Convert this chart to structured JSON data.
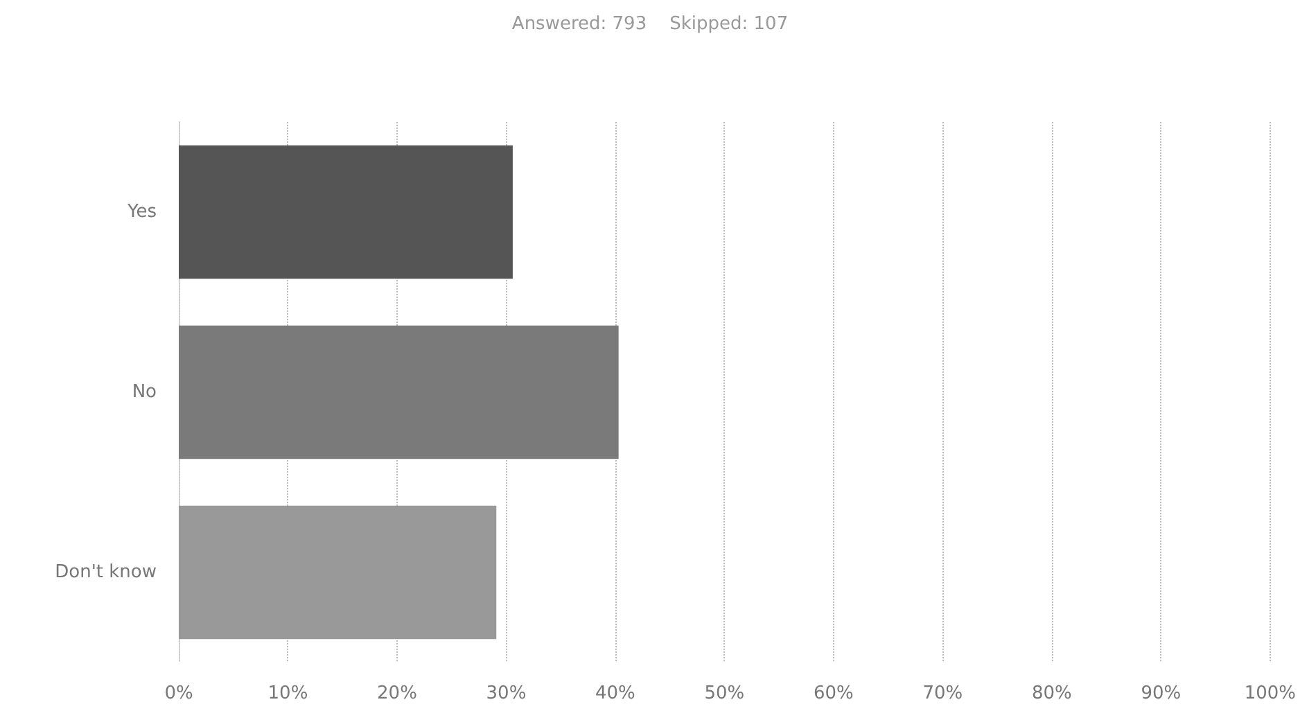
{
  "chart_data": {
    "type": "bar",
    "orientation": "horizontal",
    "title": "Answered: 793    Skipped: 107",
    "categories": [
      "Yes",
      "No",
      "Don't know"
    ],
    "values": [
      30.6,
      40.3,
      29.1
    ],
    "colors": [
      "#555555",
      "#7a7a7a",
      "#999999"
    ],
    "xlim": [
      0,
      100
    ],
    "xticks": [
      {
        "value": 0,
        "label": "0%"
      },
      {
        "value": 10,
        "label": "10%"
      },
      {
        "value": 20,
        "label": "20%"
      },
      {
        "value": 30,
        "label": "30%"
      },
      {
        "value": 40,
        "label": "40%"
      },
      {
        "value": 50,
        "label": "50%"
      },
      {
        "value": 60,
        "label": "60%"
      },
      {
        "value": 70,
        "label": "70%"
      },
      {
        "value": 80,
        "label": "80%"
      },
      {
        "value": 90,
        "label": "90%"
      },
      {
        "value": 100,
        "label": "100%"
      }
    ],
    "grid": "x"
  }
}
